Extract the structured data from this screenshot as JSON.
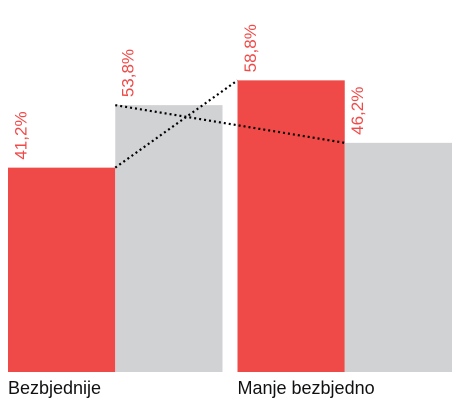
{
  "chart_data": {
    "type": "bar",
    "categories": [
      "Bezbjednije",
      "Manje bezbjedno"
    ],
    "series": [
      {
        "color": "#ef4a48",
        "values": [
          41.2,
          58.8
        ],
        "value_labels": [
          "41,2%",
          "58,8%"
        ]
      },
      {
        "color": "#d1d2d4",
        "values": [
          53.8,
          46.2
        ],
        "value_labels": [
          "53,8%",
          "46,2%"
        ]
      }
    ],
    "ylim": [
      0,
      75
    ],
    "label_color": "#ef4a48",
    "connector_color": "#000000"
  }
}
